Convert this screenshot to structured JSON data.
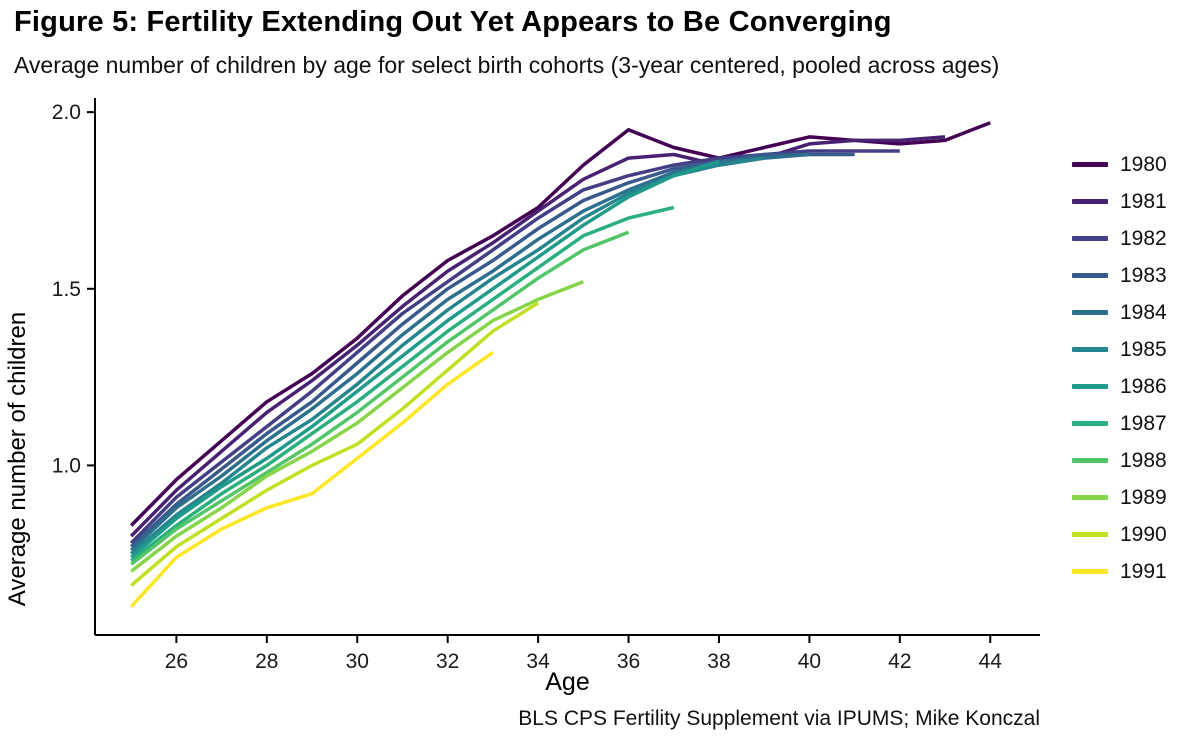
{
  "figure": {
    "title": "Figure 5: Fertility Extending Out Yet Appears to Be Converging",
    "subtitle": "Average number of children by age for select birth cohorts (3-year centered, pooled across ages)",
    "caption": "BLS CPS Fertility Supplement via IPUMS; Mike Konczal"
  },
  "chart_data": {
    "type": "line",
    "title": "Figure 5: Fertility Extending Out Yet Appears to Be Converging",
    "subtitle": "Average number of children by age for select birth cohorts (3-year centered, pooled across ages)",
    "caption": "BLS CPS Fertility Supplement via IPUMS; Mike Konczal",
    "xlabel": "Age",
    "ylabel": "Average number of children",
    "x_ticks": [
      26,
      28,
      30,
      32,
      34,
      36,
      38,
      40,
      42,
      44
    ],
    "y_ticks": [
      1.0,
      1.5,
      2.0
    ],
    "xlim": [
      24.2,
      45.1
    ],
    "ylim": [
      0.52,
      2.04
    ],
    "grid": false,
    "legend_position": "right",
    "series": [
      {
        "name": "1980",
        "color": "#440154",
        "x": [
          25,
          26,
          27,
          28,
          29,
          30,
          31,
          32,
          33,
          34,
          35,
          36,
          37,
          38,
          39,
          40,
          41,
          42,
          43,
          44
        ],
        "y": [
          0.83,
          0.96,
          1.07,
          1.18,
          1.26,
          1.36,
          1.48,
          1.58,
          1.65,
          1.73,
          1.85,
          1.95,
          1.9,
          1.87,
          1.9,
          1.93,
          1.92,
          1.91,
          1.92,
          1.97
        ]
      },
      {
        "name": "1981",
        "color": "#482173",
        "x": [
          25,
          26,
          27,
          28,
          29,
          30,
          31,
          32,
          33,
          34,
          35,
          36,
          37,
          38,
          39,
          40,
          41,
          42,
          43
        ],
        "y": [
          0.8,
          0.93,
          1.04,
          1.15,
          1.24,
          1.34,
          1.45,
          1.55,
          1.63,
          1.72,
          1.81,
          1.87,
          1.88,
          1.85,
          1.87,
          1.91,
          1.92,
          1.92,
          1.93
        ]
      },
      {
        "name": "1982",
        "color": "#433e85",
        "x": [
          25,
          26,
          27,
          28,
          29,
          30,
          31,
          32,
          33,
          34,
          35,
          36,
          37,
          38,
          39,
          40,
          41,
          42
        ],
        "y": [
          0.78,
          0.91,
          1.01,
          1.11,
          1.21,
          1.32,
          1.43,
          1.52,
          1.61,
          1.7,
          1.78,
          1.82,
          1.85,
          1.87,
          1.88,
          1.89,
          1.89,
          1.89
        ]
      },
      {
        "name": "1983",
        "color": "#38598c",
        "x": [
          25,
          26,
          27,
          28,
          29,
          30,
          31,
          32,
          33,
          34,
          35,
          36,
          37,
          38,
          39,
          40,
          41
        ],
        "y": [
          0.77,
          0.89,
          0.99,
          1.09,
          1.18,
          1.29,
          1.4,
          1.5,
          1.58,
          1.67,
          1.75,
          1.8,
          1.84,
          1.86,
          1.88,
          1.88,
          1.88
        ]
      },
      {
        "name": "1984",
        "color": "#2d708e",
        "x": [
          25,
          26,
          27,
          28,
          29,
          30,
          31,
          32,
          33,
          34,
          35,
          36,
          37,
          38,
          39,
          40
        ],
        "y": [
          0.76,
          0.88,
          0.97,
          1.07,
          1.16,
          1.26,
          1.37,
          1.47,
          1.55,
          1.64,
          1.72,
          1.78,
          1.83,
          1.86,
          1.87,
          1.88
        ]
      },
      {
        "name": "1985",
        "color": "#25858e",
        "x": [
          25,
          26,
          27,
          28,
          29,
          30,
          31,
          32,
          33,
          34,
          35,
          36,
          37,
          38,
          39
        ],
        "y": [
          0.75,
          0.86,
          0.95,
          1.05,
          1.13,
          1.23,
          1.34,
          1.44,
          1.53,
          1.61,
          1.7,
          1.77,
          1.82,
          1.85,
          1.87
        ]
      },
      {
        "name": "1986",
        "color": "#1e9b8a",
        "x": [
          25,
          26,
          27,
          28,
          29,
          30,
          31,
          32,
          33,
          34,
          35,
          36,
          37,
          38
        ],
        "y": [
          0.74,
          0.85,
          0.94,
          1.02,
          1.11,
          1.21,
          1.31,
          1.41,
          1.5,
          1.59,
          1.68,
          1.76,
          1.82,
          1.86
        ]
      },
      {
        "name": "1987",
        "color": "#2ab07f",
        "x": [
          25,
          26,
          27,
          28,
          29,
          30,
          31,
          32,
          33,
          34,
          35,
          36,
          37
        ],
        "y": [
          0.73,
          0.83,
          0.92,
          1.0,
          1.09,
          1.18,
          1.28,
          1.38,
          1.47,
          1.56,
          1.65,
          1.7,
          1.73
        ]
      },
      {
        "name": "1988",
        "color": "#52c569",
        "x": [
          25,
          26,
          27,
          28,
          29,
          30,
          31,
          32,
          33,
          34,
          35,
          36
        ],
        "y": [
          0.72,
          0.82,
          0.9,
          0.98,
          1.06,
          1.15,
          1.25,
          1.35,
          1.44,
          1.53,
          1.61,
          1.66
        ]
      },
      {
        "name": "1989",
        "color": "#86d549",
        "x": [
          25,
          26,
          27,
          28,
          29,
          30,
          31,
          32,
          33,
          34,
          35
        ],
        "y": [
          0.7,
          0.8,
          0.88,
          0.97,
          1.04,
          1.12,
          1.22,
          1.32,
          1.41,
          1.47,
          1.52
        ]
      },
      {
        "name": "1990",
        "color": "#c2df23",
        "x": [
          25,
          26,
          27,
          28,
          29,
          30,
          31,
          32,
          33,
          34
        ],
        "y": [
          0.66,
          0.77,
          0.85,
          0.93,
          1.0,
          1.06,
          1.16,
          1.27,
          1.38,
          1.46
        ]
      },
      {
        "name": "1991",
        "color": "#fde725",
        "x": [
          25,
          26,
          27,
          28,
          29,
          30,
          31,
          32,
          33
        ],
        "y": [
          0.6,
          0.74,
          0.82,
          0.88,
          0.92,
          1.02,
          1.12,
          1.23,
          1.32
        ]
      }
    ]
  }
}
